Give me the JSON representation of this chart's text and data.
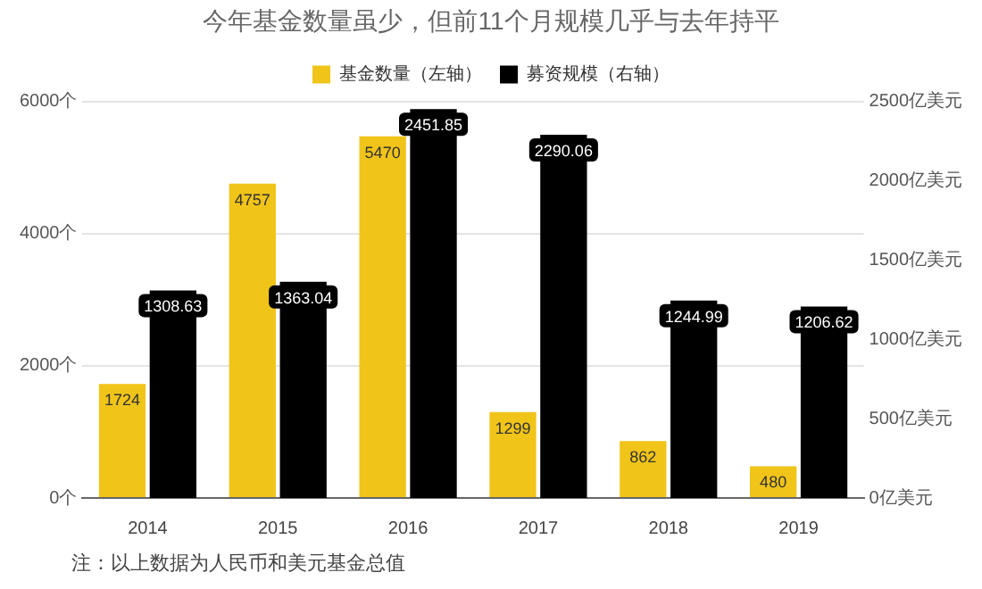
{
  "chart_data": {
    "type": "bar",
    "title": "今年基金数量虽少，但前11个月规模几乎与去年持平",
    "categories": [
      "2014",
      "2015",
      "2016",
      "2017",
      "2018",
      "2019"
    ],
    "series": [
      {
        "name": "基金数量（左轴）",
        "color": "#f0c419",
        "values": [
          1724,
          4757,
          5470,
          1299,
          862,
          480
        ]
      },
      {
        "name": "募资规模（右轴）",
        "color": "#000000",
        "axis": "y2",
        "values": [
          1308.63,
          1363.04,
          2451.85,
          2290.06,
          1244.99,
          1206.62
        ]
      }
    ],
    "ylim": [
      0,
      6000
    ],
    "yticks": [
      {
        "value": 0,
        "label": "0个"
      },
      {
        "value": 2000,
        "label": "2000个"
      },
      {
        "value": 4000,
        "label": "4000个"
      },
      {
        "value": 6000,
        "label": "6000个"
      }
    ],
    "y2lim": [
      0,
      2500
    ],
    "y2ticks": [
      {
        "value": 0,
        "label": "0亿美元"
      },
      {
        "value": 500,
        "label": "500亿美元"
      },
      {
        "value": 1000,
        "label": "1000亿美元"
      },
      {
        "value": 1500,
        "label": "1500亿美元"
      },
      {
        "value": 2000,
        "label": "2000亿美元"
      },
      {
        "value": 2500,
        "label": "2500亿美元"
      }
    ],
    "grid": "y",
    "legend": "top",
    "data_labels": true,
    "annotations": [
      "注：以上数据为人民币和美元基金总值"
    ]
  }
}
